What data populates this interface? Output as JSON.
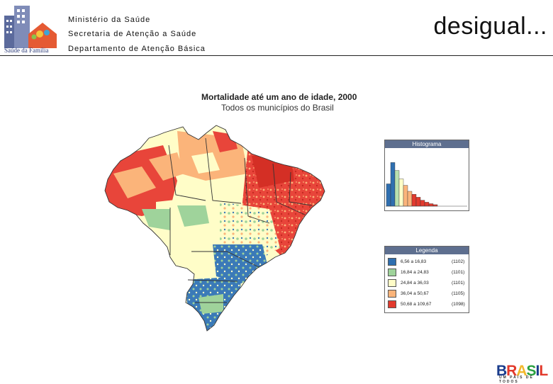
{
  "header": {
    "logo_caption": "Saúde da Família",
    "line1": "Ministério da Saúde",
    "line2": "Secretaria de Atenção a Saúde",
    "line3": "Departamento de Atenção Básica"
  },
  "slide_title": "desigual...",
  "map": {
    "title": "Mortalidade até um ano de idade, 2000",
    "subtitle": "Todos os municípios do Brasil"
  },
  "histogram": {
    "title": "Histograma",
    "bars": [
      0.45,
      0.88,
      0.72,
      0.55,
      0.42,
      0.3,
      0.24,
      0.18,
      0.12,
      0.08,
      0.05,
      0.03
    ],
    "colors": [
      "#2f6fb0",
      "#2f6fb0",
      "#b9e0b0",
      "#fffdc8",
      "#fbb47a",
      "#fbb47a",
      "#e23a2e",
      "#e23a2e",
      "#e23a2e",
      "#e23a2e",
      "#e23a2e",
      "#e23a2e"
    ]
  },
  "legend": {
    "title": "Legenda",
    "items": [
      {
        "label": "6,56 a 16,83",
        "count": "(1102)",
        "color": "#2f6fb0"
      },
      {
        "label": "16,84 a 24,83",
        "count": "(1101)",
        "color": "#9fd39b"
      },
      {
        "label": "24,84 a 36,03",
        "count": "(1101)",
        "color": "#fffdc8"
      },
      {
        "label": "36,04 a 50,67",
        "count": "(1105)",
        "color": "#fbb47a"
      },
      {
        "label": "50,68 a 109,67",
        "count": "(1098)",
        "color": "#e23a2e"
      }
    ]
  },
  "footer_logo": {
    "text": "BRASIL",
    "tagline": "UM PAÍS DE TODOS"
  }
}
